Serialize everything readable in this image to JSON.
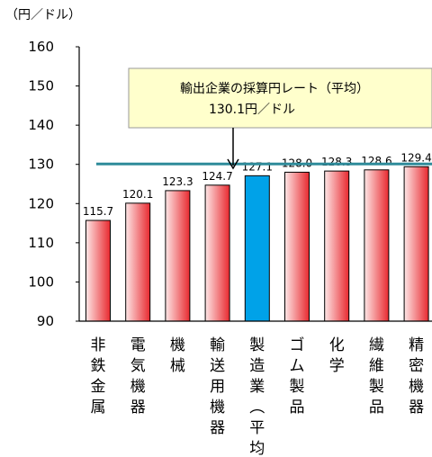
{
  "chart_data": {
    "type": "bar",
    "unit_label": "（円／ドル）",
    "ylim": [
      90,
      160
    ],
    "yticks": [
      90,
      100,
      110,
      120,
      130,
      140,
      150,
      160
    ],
    "categories": [
      "非鉄金属",
      "電気機器",
      "機械",
      "輸送用機器",
      "製造業（平均）",
      "ゴム製品",
      "化学",
      "繊維製品",
      "精密機器"
    ],
    "values": [
      115.7,
      120.1,
      123.3,
      124.7,
      127.1,
      128.0,
      128.3,
      128.6,
      129.4
    ],
    "value_labels": [
      "115.7",
      "120.1",
      "123.3",
      "124.7",
      "127.1",
      "128.0",
      "128.3",
      "128.6",
      "129.4"
    ],
    "highlight_index": 4,
    "colors": {
      "bar_gradient_light": "#fde6e6",
      "bar_gradient_dark": "#e8292f",
      "highlight": "#00a2e8",
      "reference_line": "#2e8b9a",
      "callout_fill": "#ffffcc"
    },
    "reference_line": {
      "value": 130.1,
      "label_line1": "輸出企業の採算円レート（平均）",
      "label_line2": "130.1円／ドル"
    }
  }
}
